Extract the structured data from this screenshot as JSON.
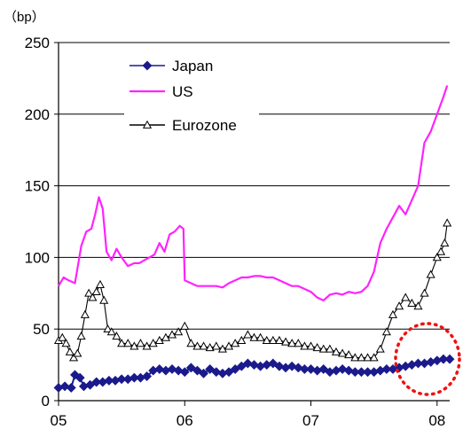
{
  "chart_data": {
    "type": "line",
    "unit_label": "（bp）",
    "x_ticks": [
      "05",
      "06",
      "07",
      "08"
    ],
    "y_ticks": [
      0,
      50,
      100,
      150,
      200,
      250
    ],
    "xlim": [
      2005.0,
      2008.1
    ],
    "ylim": [
      0,
      250
    ],
    "grid": "horizontal",
    "legend_position": "top-left",
    "series": [
      {
        "name": "Japan",
        "color": "#1a1a8c",
        "marker": "diamond",
        "x": [
          2005.0,
          2005.05,
          2005.1,
          2005.13,
          2005.17,
          2005.2,
          2005.25,
          2005.3,
          2005.35,
          2005.4,
          2005.45,
          2005.5,
          2005.55,
          2005.6,
          2005.65,
          2005.7,
          2005.75,
          2005.8,
          2005.85,
          2005.9,
          2005.95,
          2006.0,
          2006.05,
          2006.1,
          2006.15,
          2006.2,
          2006.25,
          2006.3,
          2006.35,
          2006.4,
          2006.45,
          2006.5,
          2006.55,
          2006.6,
          2006.65,
          2006.7,
          2006.75,
          2006.8,
          2006.85,
          2006.9,
          2006.95,
          2007.0,
          2007.05,
          2007.1,
          2007.15,
          2007.2,
          2007.25,
          2007.3,
          2007.35,
          2007.4,
          2007.45,
          2007.5,
          2007.55,
          2007.6,
          2007.65,
          2007.7,
          2007.75,
          2007.8,
          2007.85,
          2007.9,
          2007.95,
          2008.0,
          2008.05,
          2008.1
        ],
        "values": [
          9,
          10,
          9,
          18,
          16,
          10,
          11,
          13,
          13,
          14,
          14,
          15,
          15,
          16,
          16,
          17,
          21,
          22,
          21,
          22,
          21,
          20,
          23,
          21,
          19,
          22,
          20,
          19,
          20,
          22,
          24,
          26,
          25,
          24,
          25,
          26,
          24,
          23,
          24,
          23,
          22,
          22,
          21,
          22,
          20,
          21,
          22,
          21,
          20,
          20,
          20,
          20,
          21,
          22,
          22,
          23,
          24,
          25,
          26,
          26,
          27,
          28,
          29,
          29
        ]
      },
      {
        "name": "US",
        "color": "#ff22ff",
        "marker": "none",
        "x": [
          2005.0,
          2005.04,
          2005.08,
          2005.13,
          2005.18,
          2005.22,
          2005.26,
          2005.29,
          2005.32,
          2005.35,
          2005.38,
          2005.42,
          2005.46,
          2005.5,
          2005.55,
          2005.6,
          2005.64,
          2005.68,
          2005.72,
          2005.76,
          2005.8,
          2005.84,
          2005.88,
          2005.92,
          2005.96,
          2005.99,
          2006.0,
          2006.05,
          2006.1,
          2006.15,
          2006.2,
          2006.25,
          2006.3,
          2006.35,
          2006.4,
          2006.45,
          2006.5,
          2006.55,
          2006.6,
          2006.65,
          2006.7,
          2006.75,
          2006.8,
          2006.85,
          2006.9,
          2006.95,
          2007.0,
          2007.05,
          2007.1,
          2007.15,
          2007.2,
          2007.25,
          2007.3,
          2007.35,
          2007.4,
          2007.45,
          2007.5,
          2007.55,
          2007.6,
          2007.65,
          2007.7,
          2007.75,
          2007.8,
          2007.85,
          2007.9,
          2007.95,
          2008.0,
          2008.05,
          2008.08
        ],
        "values": [
          80,
          86,
          84,
          82,
          108,
          118,
          120,
          130,
          142,
          134,
          104,
          98,
          106,
          100,
          94,
          96,
          96,
          98,
          100,
          102,
          110,
          104,
          116,
          118,
          122,
          120,
          84,
          82,
          80,
          80,
          80,
          80,
          79,
          82,
          84,
          86,
          86,
          87,
          87,
          86,
          86,
          84,
          82,
          80,
          80,
          78,
          76,
          72,
          70,
          74,
          75,
          74,
          76,
          75,
          76,
          80,
          90,
          110,
          120,
          128,
          136,
          130,
          140,
          150,
          180,
          188,
          200,
          212,
          220
        ]
      },
      {
        "name": "Eurozone",
        "color": "#000000",
        "marker": "triangle",
        "x": [
          2005.0,
          2005.03,
          2005.06,
          2005.09,
          2005.12,
          2005.15,
          2005.18,
          2005.21,
          2005.24,
          2005.27,
          2005.3,
          2005.33,
          2005.36,
          2005.39,
          2005.42,
          2005.46,
          2005.5,
          2005.55,
          2005.6,
          2005.65,
          2005.7,
          2005.75,
          2005.8,
          2005.85,
          2005.9,
          2005.95,
          2006.0,
          2006.05,
          2006.1,
          2006.15,
          2006.2,
          2006.25,
          2006.3,
          2006.35,
          2006.4,
          2006.45,
          2006.5,
          2006.55,
          2006.6,
          2006.65,
          2006.7,
          2006.75,
          2006.8,
          2006.85,
          2006.9,
          2006.95,
          2007.0,
          2007.05,
          2007.1,
          2007.15,
          2007.2,
          2007.25,
          2007.3,
          2007.35,
          2007.4,
          2007.45,
          2007.5,
          2007.55,
          2007.6,
          2007.65,
          2007.7,
          2007.75,
          2007.8,
          2007.85,
          2007.9,
          2007.95,
          2008.0,
          2008.03,
          2008.06,
          2008.08
        ],
        "values": [
          42,
          44,
          40,
          34,
          30,
          33,
          45,
          60,
          75,
          72,
          76,
          81,
          70,
          50,
          48,
          45,
          40,
          40,
          38,
          40,
          38,
          40,
          42,
          44,
          46,
          48,
          52,
          40,
          38,
          38,
          37,
          38,
          36,
          38,
          40,
          42,
          46,
          44,
          44,
          42,
          42,
          42,
          41,
          40,
          40,
          38,
          38,
          37,
          36,
          36,
          34,
          33,
          32,
          30,
          30,
          30,
          30,
          36,
          48,
          60,
          66,
          72,
          68,
          66,
          75,
          88,
          100,
          104,
          110,
          124
        ]
      }
    ]
  }
}
